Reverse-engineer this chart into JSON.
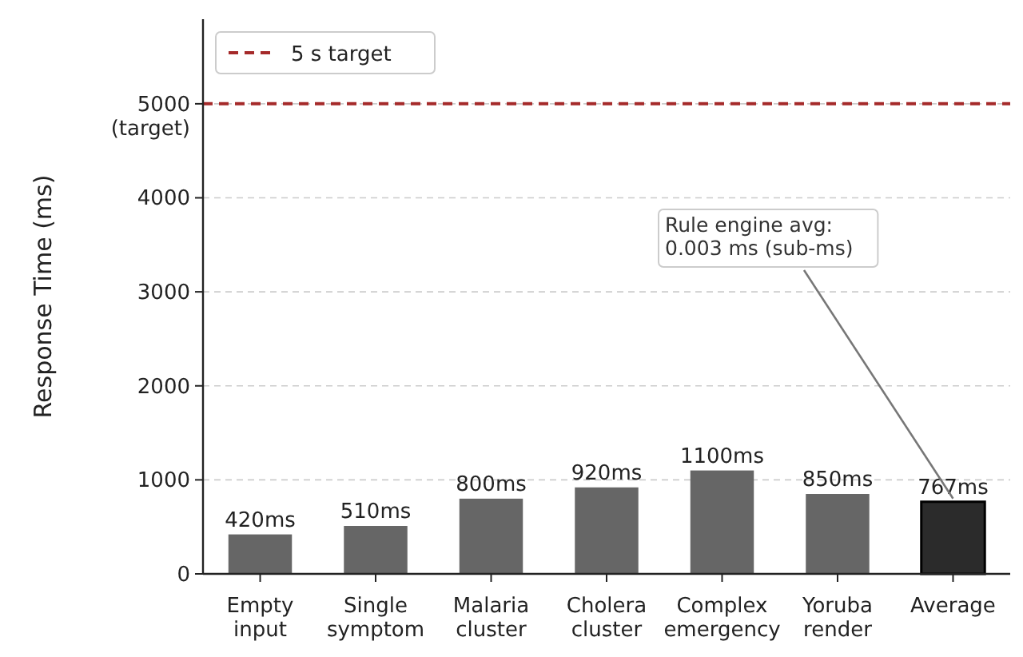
{
  "chart_data": {
    "type": "bar",
    "ylabel": "Response Time (ms)",
    "categories": [
      "Empty\ninput",
      "Single\nsymptom",
      "Malaria\ncluster",
      "Cholera\ncluster",
      "Complex\nemergency",
      "Yoruba\nrender",
      "Average"
    ],
    "values": [
      420,
      510,
      800,
      920,
      1100,
      850,
      767
    ],
    "colors": [
      "#666666",
      "#666666",
      "#666666",
      "#666666",
      "#666666",
      "#666666",
      "#2b2b2b"
    ],
    "value_labels": [
      "420ms",
      "510ms",
      "800ms",
      "920ms",
      "1100ms",
      "850ms",
      "767ms"
    ],
    "ylim": [
      0,
      5900
    ],
    "yticks": [
      0,
      1000,
      2000,
      3000,
      4000,
      {
        "value": 5000,
        "label": "5000\n(target)"
      }
    ],
    "grid": "y",
    "legend": "top left",
    "ref_lines": [
      {
        "axis": "y",
        "value": 5000,
        "label": "5 s target",
        "color": "#a52a2a",
        "line_style": "dashed"
      }
    ],
    "annotations": [
      {
        "text": "Rule engine avg:\n0.003 ms (sub-ms)",
        "x": "Average",
        "y": 767
      }
    ]
  }
}
